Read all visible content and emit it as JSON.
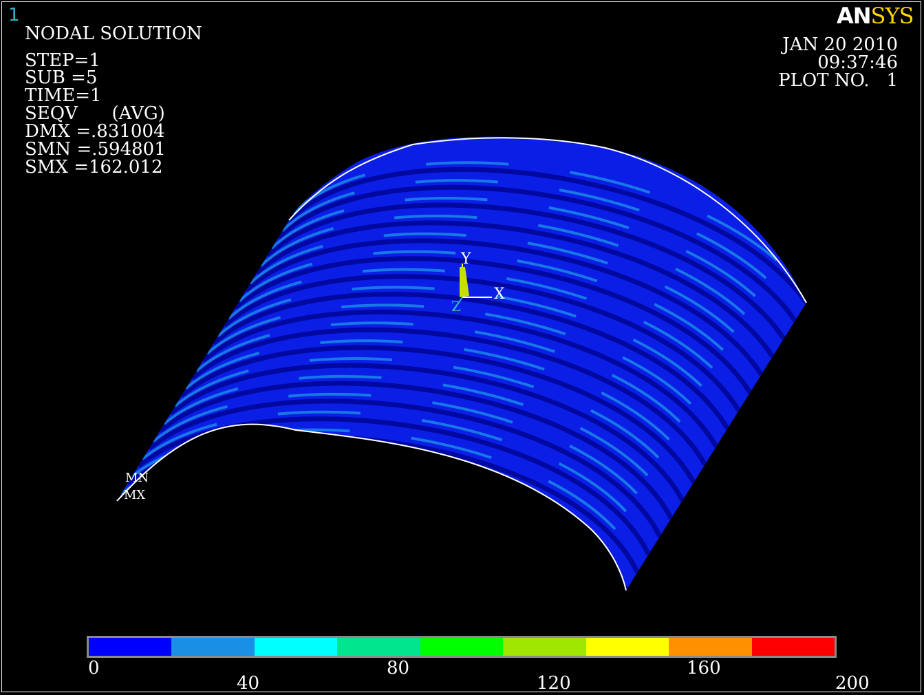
{
  "window_number": "1",
  "logo": {
    "part1": "AN",
    "part2": "SYS"
  },
  "info": {
    "title": "NODAL SOLUTION",
    "step": "STEP=1",
    "sub": "SUB =5",
    "time": "TIME=1",
    "seqv": "SEQV      (AVG)",
    "dmx": "DMX =.831004",
    "smn": "SMN =.594801",
    "smx": "SMX =162.012"
  },
  "date": {
    "date": "JAN 20 2010",
    "time": "09:37:46",
    "plot": "PLOT NO.   1"
  },
  "triad": {
    "y": "Y",
    "x": "X",
    "z": "Z"
  },
  "markers": {
    "mn": "MN",
    "mx": "MX"
  },
  "legend": {
    "colors": [
      "#0000ff",
      "#1a8fe6",
      "#00ffff",
      "#00e68f",
      "#00ff00",
      "#9fe600",
      "#ffff00",
      "#ff9000",
      "#ff0000"
    ],
    "ticks_top": [
      "0",
      "80",
      "160"
    ],
    "ticks_bottom": [
      "40",
      "120",
      "200"
    ]
  }
}
